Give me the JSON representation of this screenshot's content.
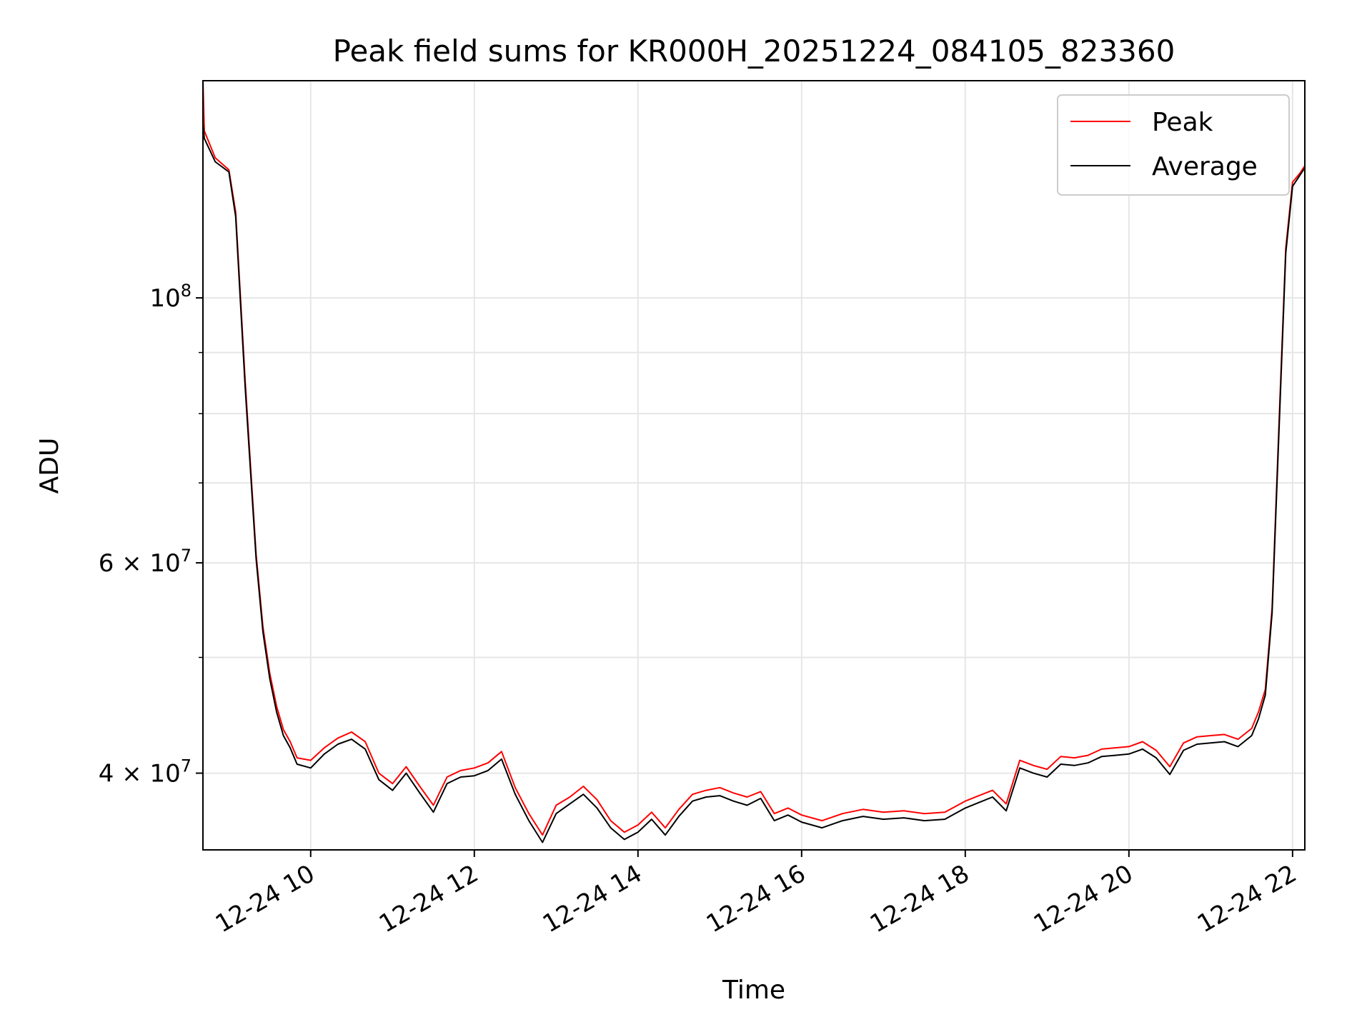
{
  "chart_data": {
    "type": "line",
    "title": "Peak field sums for KR000H_20251224_084105_823360",
    "xlabel": "Time",
    "ylabel": "ADU",
    "x_scale": "time",
    "y_scale": "log",
    "xlim": [
      "2025-12-24T08:41",
      "2025-12-24T22:09"
    ],
    "ylim": [
      34500000,
      152000000
    ],
    "x_ticks": [
      {
        "value": "2025-12-24T10:00",
        "label": "12-24 10"
      },
      {
        "value": "2025-12-24T12:00",
        "label": "12-24 12"
      },
      {
        "value": "2025-12-24T14:00",
        "label": "12-24 14"
      },
      {
        "value": "2025-12-24T16:00",
        "label": "12-24 16"
      },
      {
        "value": "2025-12-24T18:00",
        "label": "12-24 18"
      },
      {
        "value": "2025-12-24T20:00",
        "label": "12-24 20"
      },
      {
        "value": "2025-12-24T22:00",
        "label": "12-24 22"
      }
    ],
    "y_ticks": [
      {
        "value": 100000000,
        "mantissa": "",
        "base": "10",
        "exp": "8"
      },
      {
        "value": 60000000,
        "mantissa": "6 × ",
        "base": "10",
        "exp": "7"
      },
      {
        "value": 40000000,
        "mantissa": "4 × ",
        "base": "10",
        "exp": "7"
      }
    ],
    "y_minor_ticks": [
      50000000,
      70000000,
      80000000,
      90000000
    ],
    "grid": true,
    "legend_placement": "top-right",
    "series": [
      {
        "name": "Peak",
        "color": "#ff0000",
        "x": [
          "2025-12-24T08:41",
          "2025-12-24T08:42",
          "2025-12-24T08:50",
          "2025-12-24T09:00",
          "2025-12-24T09:05",
          "2025-12-24T09:12",
          "2025-12-24T09:20",
          "2025-12-24T09:25",
          "2025-12-24T09:30",
          "2025-12-24T09:35",
          "2025-12-24T09:40",
          "2025-12-24T09:45",
          "2025-12-24T09:50",
          "2025-12-24T10:00",
          "2025-12-24T10:10",
          "2025-12-24T10:20",
          "2025-12-24T10:30",
          "2025-12-24T10:40",
          "2025-12-24T10:50",
          "2025-12-24T11:00",
          "2025-12-24T11:10",
          "2025-12-24T11:20",
          "2025-12-24T11:30",
          "2025-12-24T11:40",
          "2025-12-24T11:50",
          "2025-12-24T12:00",
          "2025-12-24T12:10",
          "2025-12-24T12:20",
          "2025-12-24T12:30",
          "2025-12-24T12:40",
          "2025-12-24T12:50",
          "2025-12-24T13:00",
          "2025-12-24T13:10",
          "2025-12-24T13:20",
          "2025-12-24T13:30",
          "2025-12-24T13:40",
          "2025-12-24T13:50",
          "2025-12-24T14:00",
          "2025-12-24T14:10",
          "2025-12-24T14:20",
          "2025-12-24T14:30",
          "2025-12-24T14:40",
          "2025-12-24T14:50",
          "2025-12-24T15:00",
          "2025-12-24T15:10",
          "2025-12-24T15:20",
          "2025-12-24T15:30",
          "2025-12-24T15:40",
          "2025-12-24T15:50",
          "2025-12-24T16:00",
          "2025-12-24T16:15",
          "2025-12-24T16:30",
          "2025-12-24T16:45",
          "2025-12-24T17:00",
          "2025-12-24T17:15",
          "2025-12-24T17:30",
          "2025-12-24T17:45",
          "2025-12-24T18:00",
          "2025-12-24T18:10",
          "2025-12-24T18:20",
          "2025-12-24T18:30",
          "2025-12-24T18:40",
          "2025-12-24T18:50",
          "2025-12-24T19:00",
          "2025-12-24T19:10",
          "2025-12-24T19:20",
          "2025-12-24T19:30",
          "2025-12-24T19:40",
          "2025-12-24T19:50",
          "2025-12-24T20:00",
          "2025-12-24T20:10",
          "2025-12-24T20:20",
          "2025-12-24T20:30",
          "2025-12-24T20:40",
          "2025-12-24T20:50",
          "2025-12-24T21:00",
          "2025-12-24T21:10",
          "2025-12-24T21:20",
          "2025-12-24T21:30",
          "2025-12-24T21:35",
          "2025-12-24T21:40",
          "2025-12-24T21:45",
          "2025-12-24T21:50",
          "2025-12-24T21:55",
          "2025-12-24T22:00",
          "2025-12-24T22:05",
          "2025-12-24T22:09"
        ],
        "values": [
          152000000,
          138000000,
          131000000,
          128000000,
          118000000,
          85000000,
          61000000,
          53000000,
          48500000,
          45500000,
          43500000,
          42500000,
          41200000,
          41000000,
          42000000,
          42800000,
          43300000,
          42500000,
          40000000,
          39200000,
          40500000,
          39000000,
          37600000,
          39700000,
          40200000,
          40400000,
          40800000,
          41700000,
          38900000,
          37000000,
          35500000,
          37600000,
          38200000,
          39000000,
          38000000,
          36500000,
          35700000,
          36200000,
          37100000,
          36000000,
          37300000,
          38400000,
          38700000,
          38900000,
          38500000,
          38200000,
          38600000,
          37000000,
          37400000,
          36900000,
          36500000,
          37000000,
          37300000,
          37100000,
          37200000,
          37000000,
          37100000,
          37900000,
          38300000,
          38700000,
          37700000,
          41000000,
          40600000,
          40300000,
          41300000,
          41200000,
          41400000,
          41900000,
          42000000,
          42100000,
          42500000,
          41800000,
          40500000,
          42400000,
          42900000,
          43000000,
          43100000,
          42700000,
          43600000,
          45000000,
          47000000,
          55000000,
          78000000,
          110000000,
          125000000,
          127000000,
          129000000
        ]
      },
      {
        "name": "Average",
        "color": "#000000",
        "x": [
          "2025-12-24T08:41",
          "2025-12-24T08:42",
          "2025-12-24T08:50",
          "2025-12-24T09:00",
          "2025-12-24T09:05",
          "2025-12-24T09:12",
          "2025-12-24T09:20",
          "2025-12-24T09:25",
          "2025-12-24T09:30",
          "2025-12-24T09:35",
          "2025-12-24T09:40",
          "2025-12-24T09:45",
          "2025-12-24T09:50",
          "2025-12-24T10:00",
          "2025-12-24T10:10",
          "2025-12-24T10:20",
          "2025-12-24T10:30",
          "2025-12-24T10:40",
          "2025-12-24T10:50",
          "2025-12-24T11:00",
          "2025-12-24T11:10",
          "2025-12-24T11:20",
          "2025-12-24T11:30",
          "2025-12-24T11:40",
          "2025-12-24T11:50",
          "2025-12-24T12:00",
          "2025-12-24T12:10",
          "2025-12-24T12:20",
          "2025-12-24T12:30",
          "2025-12-24T12:40",
          "2025-12-24T12:50",
          "2025-12-24T13:00",
          "2025-12-24T13:10",
          "2025-12-24T13:20",
          "2025-12-24T13:30",
          "2025-12-24T13:40",
          "2025-12-24T13:50",
          "2025-12-24T14:00",
          "2025-12-24T14:10",
          "2025-12-24T14:20",
          "2025-12-24T14:30",
          "2025-12-24T14:40",
          "2025-12-24T14:50",
          "2025-12-24T15:00",
          "2025-12-24T15:10",
          "2025-12-24T15:20",
          "2025-12-24T15:30",
          "2025-12-24T15:40",
          "2025-12-24T15:50",
          "2025-12-24T16:00",
          "2025-12-24T16:15",
          "2025-12-24T16:30",
          "2025-12-24T16:45",
          "2025-12-24T17:00",
          "2025-12-24T17:15",
          "2025-12-24T17:30",
          "2025-12-24T17:45",
          "2025-12-24T18:00",
          "2025-12-24T18:10",
          "2025-12-24T18:20",
          "2025-12-24T18:30",
          "2025-12-24T18:40",
          "2025-12-24T18:50",
          "2025-12-24T19:00",
          "2025-12-24T19:10",
          "2025-12-24T19:20",
          "2025-12-24T19:30",
          "2025-12-24T19:40",
          "2025-12-24T19:50",
          "2025-12-24T20:00",
          "2025-12-24T20:10",
          "2025-12-24T20:20",
          "2025-12-24T20:30",
          "2025-12-24T20:40",
          "2025-12-24T20:50",
          "2025-12-24T21:00",
          "2025-12-24T21:10",
          "2025-12-24T21:20",
          "2025-12-24T21:30",
          "2025-12-24T21:35",
          "2025-12-24T21:40",
          "2025-12-24T21:45",
          "2025-12-24T21:50",
          "2025-12-24T21:55",
          "2025-12-24T22:00",
          "2025-12-24T22:05",
          "2025-12-24T22:09"
        ],
        "values": [
          140000000,
          136000000,
          130000000,
          127500000,
          117000000,
          84000000,
          60500000,
          52500000,
          48000000,
          45000000,
          43000000,
          42000000,
          40700000,
          40400000,
          41500000,
          42300000,
          42700000,
          41900000,
          39500000,
          38700000,
          40000000,
          38500000,
          37100000,
          39200000,
          39700000,
          39800000,
          40200000,
          41100000,
          38400000,
          36500000,
          35000000,
          37000000,
          37700000,
          38400000,
          37400000,
          36000000,
          35200000,
          35700000,
          36600000,
          35500000,
          36800000,
          37900000,
          38200000,
          38300000,
          37900000,
          37600000,
          38100000,
          36500000,
          36900000,
          36400000,
          36000000,
          36500000,
          36800000,
          36600000,
          36700000,
          36500000,
          36600000,
          37400000,
          37800000,
          38200000,
          37200000,
          40400000,
          40000000,
          39700000,
          40700000,
          40600000,
          40800000,
          41300000,
          41400000,
          41500000,
          41900000,
          41200000,
          39900000,
          41800000,
          42300000,
          42400000,
          42500000,
          42100000,
          43000000,
          44400000,
          46500000,
          54500000,
          77000000,
          109000000,
          124000000,
          126500000,
          128500000
        ]
      }
    ]
  }
}
